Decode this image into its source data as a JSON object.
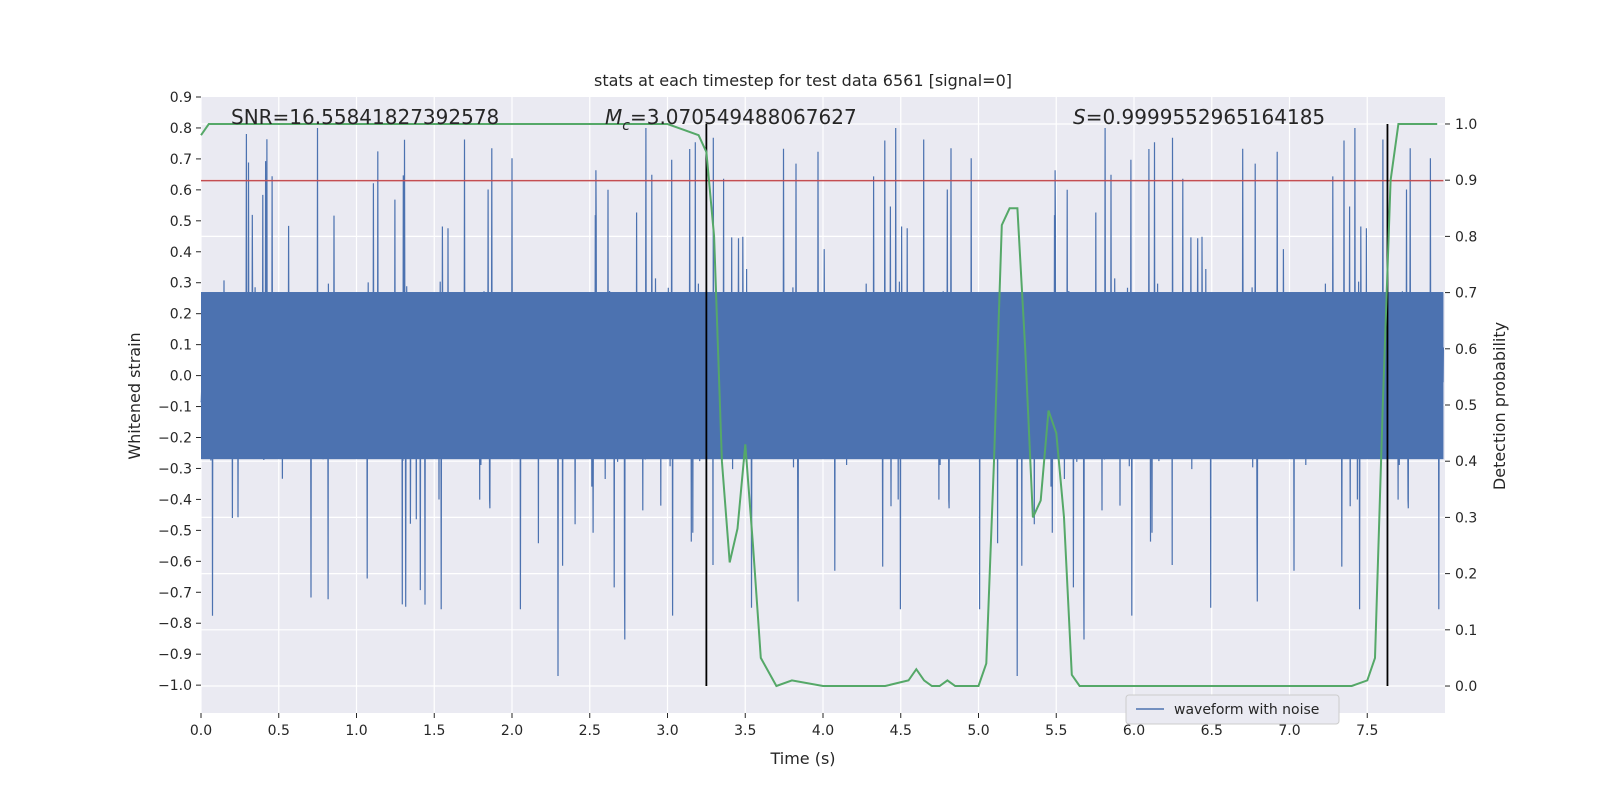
{
  "chart_data": {
    "type": "line",
    "title": "stats at each timestep for test data 6561 [signal=0]",
    "xlabel": "Time (s)",
    "ylabel": "Whitened strain",
    "y2label": "Detection probability",
    "xlim": [
      0.0,
      8.0
    ],
    "ylim": [
      -1.09,
      0.9
    ],
    "y2lim": [
      -0.048,
      1.048
    ],
    "xticks": [
      "0.0",
      "0.5",
      "1.0",
      "1.5",
      "2.0",
      "2.5",
      "3.0",
      "3.5",
      "4.0",
      "4.5",
      "5.0",
      "5.5",
      "6.0",
      "6.5",
      "7.0",
      "7.5"
    ],
    "yticks": [
      "0.9",
      "0.8",
      "0.7",
      "0.6",
      "0.5",
      "0.4",
      "0.3",
      "0.2",
      "0.1",
      "0.0",
      "−0.1",
      "−0.2",
      "−0.3",
      "−0.4",
      "−0.5",
      "−0.6",
      "−0.7",
      "−0.8",
      "−0.9",
      "−1.0"
    ],
    "y2ticks": [
      "0.0",
      "0.1",
      "0.2",
      "0.3",
      "0.4",
      "0.5",
      "0.6",
      "0.7",
      "0.8",
      "0.9",
      "1.0"
    ],
    "grid": true,
    "legend_position": "lower-right",
    "annotations": {
      "snr": "SNR=16.55841827392578",
      "mc_symbol": "M",
      "mc_subscript": "c",
      "mc_value": "=3.070549488067627",
      "s_symbol": "S",
      "s_value": "=0.9999552965164185"
    },
    "threshold_line": {
      "y": 0.63,
      "color": "#c44e52"
    },
    "vertical_lines": [
      3.25,
      7.63
    ],
    "series": [
      {
        "name": "waveform with noise",
        "axis": "left",
        "color": "#4c72b0",
        "core_amplitude": 0.27,
        "peak_amplitude": 0.8,
        "points": 4000
      },
      {
        "axis": "right",
        "color": "#55a868",
        "x": [
          0.0,
          0.05,
          0.1,
          0.5,
          1.0,
          1.5,
          2.0,
          2.5,
          2.9,
          3.0,
          3.1,
          3.2,
          3.25,
          3.3,
          3.35,
          3.4,
          3.45,
          3.5,
          3.55,
          3.6,
          3.7,
          3.8,
          4.0,
          4.2,
          4.4,
          4.55,
          4.6,
          4.65,
          4.7,
          4.75,
          4.8,
          4.85,
          4.9,
          4.95,
          5.0,
          5.05,
          5.1,
          5.15,
          5.2,
          5.25,
          5.3,
          5.35,
          5.4,
          5.45,
          5.5,
          5.55,
          5.6,
          5.65,
          5.7,
          5.8,
          6.0,
          6.5,
          7.0,
          7.3,
          7.4,
          7.5,
          7.55,
          7.6,
          7.65,
          7.7,
          7.8,
          7.95
        ],
        "y": [
          0.98,
          1.0,
          1.0,
          1.0,
          1.0,
          1.0,
          1.0,
          1.0,
          1.0,
          1.0,
          0.99,
          0.98,
          0.95,
          0.8,
          0.4,
          0.22,
          0.28,
          0.43,
          0.25,
          0.05,
          0.0,
          0.01,
          0.0,
          0.0,
          0.0,
          0.01,
          0.03,
          0.01,
          0.0,
          0.0,
          0.01,
          0.0,
          0.0,
          0.0,
          0.0,
          0.04,
          0.4,
          0.82,
          0.85,
          0.85,
          0.6,
          0.3,
          0.33,
          0.49,
          0.45,
          0.3,
          0.02,
          0.0,
          0.0,
          0.0,
          0.0,
          0.0,
          0.0,
          0.0,
          0.0,
          0.01,
          0.05,
          0.5,
          0.9,
          1.0,
          1.0,
          1.0
        ]
      }
    ]
  }
}
